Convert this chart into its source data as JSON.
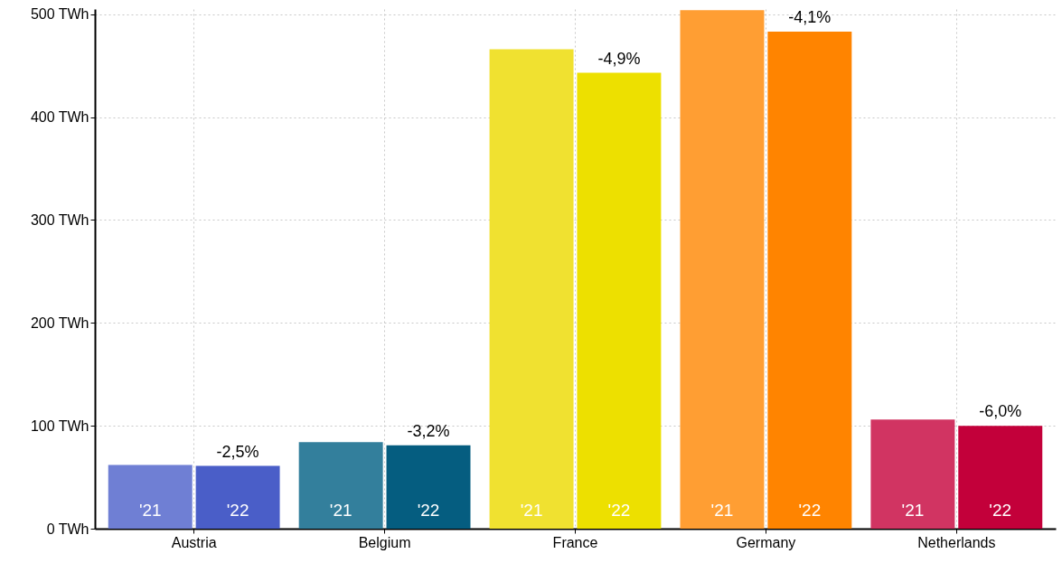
{
  "chart_data": {
    "type": "bar",
    "categories": [
      "Austria",
      "Belgium",
      "France",
      "Germany",
      "Netherlands"
    ],
    "series": [
      {
        "name": "'21",
        "colors": [
          "#6f7fd4",
          "#337f9c",
          "#f0e130",
          "#ff9e33",
          "#d13462"
        ],
        "values": [
          62,
          84,
          466,
          504,
          106
        ]
      },
      {
        "name": "'22",
        "colors": [
          "#4a5ec8",
          "#055d80",
          "#ede000",
          "#ff8400",
          "#c3003a"
        ],
        "values": [
          61,
          81,
          443,
          483,
          100
        ]
      }
    ],
    "ylim": [
      0,
      505
    ],
    "yticks": [
      {
        "value": 0,
        "label": "0 TWh"
      },
      {
        "value": 100,
        "label": "100 TWh"
      },
      {
        "value": 200,
        "label": "200 TWh"
      },
      {
        "value": 300,
        "label": "300 TWh"
      },
      {
        "value": 400,
        "label": "400 TWh"
      },
      {
        "value": 500,
        "label": "500 TWh"
      }
    ],
    "grid": true,
    "annotations": [
      {
        "text": "-2,5%",
        "x": "Austria",
        "y": 61
      },
      {
        "text": "-3,2%",
        "x": "Belgium",
        "y": 81
      },
      {
        "text": "-4,9%",
        "x": "France",
        "y": 443
      },
      {
        "text": "-4,1%",
        "x": "Germany",
        "y": 483
      },
      {
        "text": "-6,0%",
        "x": "Netherlands",
        "y": 100
      }
    ]
  }
}
